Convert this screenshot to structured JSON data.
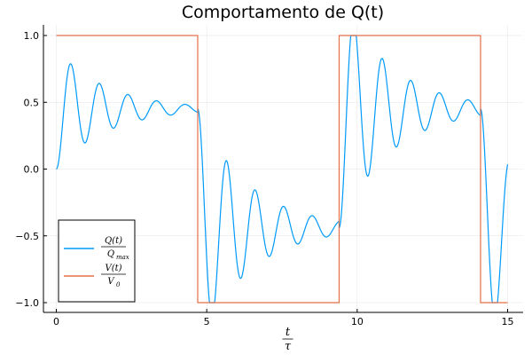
{
  "chart_data": {
    "type": "line",
    "title": "Comportamento de Q(t)",
    "xlabel": {
      "numerator": "t",
      "denominator": "τ"
    },
    "ylabel": "",
    "xlim": [
      0,
      15
    ],
    "ylim": [
      -1.0,
      1.0
    ],
    "xticks": [
      0,
      5,
      10,
      15
    ],
    "xtick_labels": [
      "0",
      "5",
      "10",
      "15"
    ],
    "yticks": [
      -1.0,
      -0.5,
      0.0,
      0.5,
      1.0
    ],
    "ytick_labels": [
      "−1.0",
      "−0.5",
      "0.0",
      "0.5",
      "1.0"
    ],
    "grid": true,
    "legend_position": "bottom-left",
    "series": [
      {
        "name": "Q(t)/Q_max",
        "legend_numerator": "Q(t)",
        "legend_denominator": "Q",
        "legend_denominator_sub": "max",
        "color": "#009AFA",
        "kind": "damped-oscillation",
        "amplitude_scale": 1.0,
        "segments": [
          {
            "t_start": 0.0,
            "t_end": 4.7,
            "start": 0.0,
            "level": 0.45,
            "first_peak": 0.72,
            "first_peak_t": 0.47,
            "period": 0.95,
            "decay": 0.6
          },
          {
            "t_start": 4.7,
            "t_end": 9.4,
            "start": 0.45,
            "level": -0.44,
            "first_peak": -1.0,
            "first_peak_t": 5.17,
            "period": 0.95,
            "decay": 0.6
          },
          {
            "t_start": 9.4,
            "t_end": 14.1,
            "start": -0.44,
            "level": 0.45,
            "first_peak": 1.0,
            "first_peak_t": 9.87,
            "period": 0.95,
            "decay": 0.6
          },
          {
            "t_start": 14.1,
            "t_end": 15.0,
            "start": 0.45,
            "level": -0.44,
            "first_peak": -1.0,
            "first_peak_t": 14.57,
            "period": 0.95,
            "decay": 0.6
          }
        ]
      },
      {
        "name": "V(t)/V_0",
        "legend_numerator": "V(t)",
        "legend_denominator": "V",
        "legend_denominator_sub": "0",
        "color": "#E26F46",
        "kind": "square-wave",
        "x": [
          0.0,
          0.0,
          4.7,
          4.7,
          9.4,
          9.4,
          14.1,
          14.1,
          15.0
        ],
        "y": [
          0.0,
          1.0,
          1.0,
          -1.0,
          -1.0,
          1.0,
          1.0,
          -1.0,
          -1.0
        ]
      }
    ]
  }
}
